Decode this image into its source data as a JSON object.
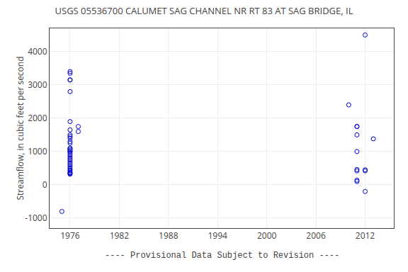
{
  "chart_data": {
    "type": "scatter",
    "title": "USGS 05536700 CALUMET SAG CHANNEL NR RT 83 AT SAG BRIDGE, IL",
    "ylabel": "Streamflow, in cubic feet per second",
    "annotations": [
      "---- Provisional Data Subject to Revision ----"
    ],
    "x": [
      1975,
      1976,
      1976,
      1976,
      1976,
      1976,
      1976,
      1976,
      1976,
      1976,
      1976,
      1976,
      1976,
      1976,
      1976,
      1976,
      1976,
      1976,
      1976,
      1976,
      1976,
      1976,
      1976,
      1976,
      1976,
      1976,
      1976,
      1976,
      1976,
      1976,
      1976,
      1976,
      1976,
      1976,
      1976,
      1977,
      1977,
      2010,
      2011,
      2011,
      2011,
      2011,
      2011,
      2011,
      2011,
      2011,
      2012,
      2012,
      2012,
      2012,
      2013
    ],
    "values": [
      -800,
      3400,
      3350,
      3150,
      3150,
      2800,
      1900,
      1650,
      1500,
      1450,
      1400,
      1300,
      1250,
      1100,
      1100,
      1050,
      1050,
      1000,
      1000,
      950,
      900,
      850,
      800,
      750,
      700,
      650,
      600,
      550,
      500,
      450,
      420,
      380,
      360,
      340,
      320,
      1750,
      1600,
      2400,
      1000,
      1750,
      1750,
      1500,
      460,
      420,
      140,
      100,
      4500,
      450,
      420,
      -200,
      1380
    ],
    "color": "#0000cc",
    "marker": "circle-open",
    "xlim": [
      1973.5,
      2015.5
    ],
    "ylim": [
      -1300,
      4700
    ],
    "xticks": [
      1976,
      1982,
      1988,
      1994,
      2000,
      2006,
      2012
    ],
    "yticks": [
      -1000,
      0,
      1000,
      2000,
      3000,
      4000
    ],
    "grid": true
  }
}
